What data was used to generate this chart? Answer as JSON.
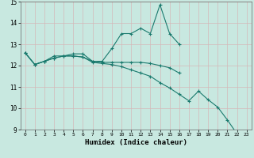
{
  "xlabel": "Humidex (Indice chaleur)",
  "background_color": "#c8e8e0",
  "grid_color": "#d4b8b8",
  "line_color": "#1a7a6e",
  "xlim": [
    -0.5,
    23.5
  ],
  "ylim": [
    9,
    15
  ],
  "xticks": [
    0,
    1,
    2,
    3,
    4,
    5,
    6,
    7,
    8,
    9,
    10,
    11,
    12,
    13,
    14,
    15,
    16,
    17,
    18,
    19,
    20,
    21,
    22,
    23
  ],
  "yticks": [
    9,
    10,
    11,
    12,
    13,
    14,
    15
  ],
  "line1_y": [
    12.6,
    12.05,
    12.2,
    12.45,
    12.45,
    12.55,
    12.55,
    12.2,
    12.2,
    12.8,
    13.5,
    13.5,
    13.75,
    13.5,
    14.85,
    13.5,
    13.0,
    null,
    null,
    null,
    null,
    null,
    null,
    null
  ],
  "line2_y": [
    12.6,
    12.05,
    12.2,
    12.35,
    12.45,
    12.45,
    12.4,
    12.2,
    12.15,
    12.15,
    12.15,
    12.15,
    12.15,
    12.1,
    12.0,
    11.9,
    11.65,
    null,
    null,
    null,
    null,
    null,
    null,
    null
  ],
  "line3_y": [
    12.6,
    12.05,
    12.2,
    12.35,
    12.45,
    12.45,
    12.4,
    12.15,
    12.1,
    12.05,
    11.95,
    11.8,
    11.65,
    11.5,
    11.2,
    10.95,
    10.65,
    10.35,
    10.8,
    10.4,
    10.05,
    9.45,
    8.8,
    8.75
  ]
}
